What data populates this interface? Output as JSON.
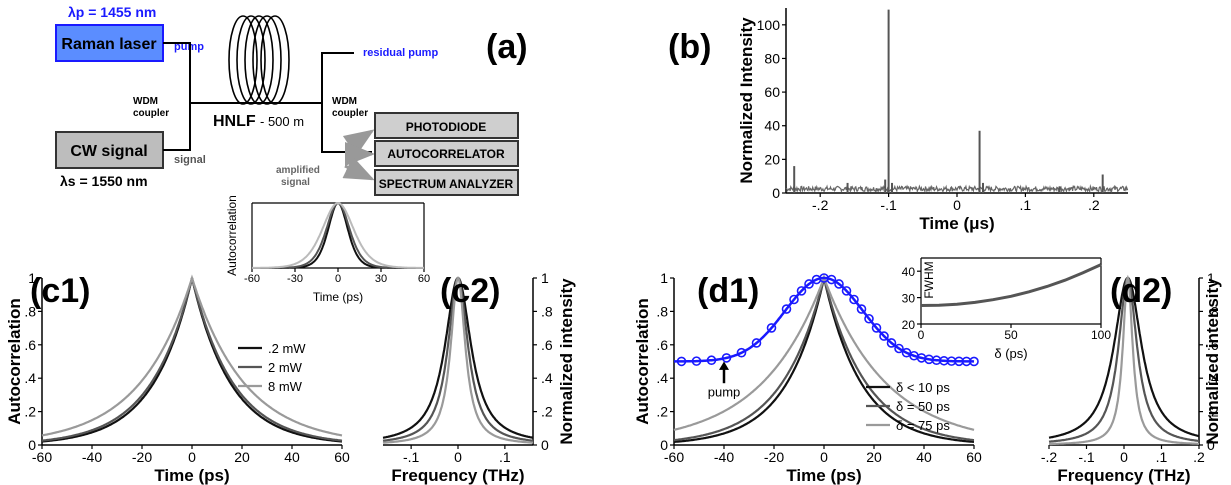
{
  "colors": {
    "blue": "#1a1aff",
    "laser_fill": "#5b8dff",
    "box_fill": "#bdbdbd",
    "dark": "#111111",
    "mid": "#555555",
    "light": "#9a9a9a"
  },
  "panel_a": {
    "label": "(a)",
    "lambda_p": "λp = 1455 nm",
    "lambda_s": "λs = 1550 nm",
    "raman": "Raman laser",
    "pump": "pump",
    "cw": "CW signal",
    "signal": "signal",
    "wdm1": [
      "WDM",
      "coupler"
    ],
    "wdm2": [
      "WDM",
      "coupler"
    ],
    "hnlf": "HNLF",
    "hnlf_len": "- 500 m",
    "residual": "residual pump",
    "amplified": [
      "amplified",
      "signal"
    ],
    "photodiode": "PHOTODIODE",
    "autocorrelator": "AUTOCORRELATOR",
    "spectrum": "SPECTRUM ANALYZER"
  },
  "chart_data": [
    {
      "id": "b",
      "type": "line",
      "label": "(b)",
      "xlabel": "Time (μs)",
      "ylabel": "Normalized Intensity",
      "xlim": [
        -0.25,
        0.25
      ],
      "ylim": [
        0,
        110
      ],
      "xticks": [
        "-.2",
        "-.1",
        "0",
        ".1",
        ".2"
      ],
      "yticks": [
        "0",
        "20",
        "40",
        "60",
        "80",
        "100"
      ],
      "baseline": 2.5,
      "spikes": [
        [
          -0.238,
          16
        ],
        [
          -0.16,
          6
        ],
        [
          -0.1,
          109
        ],
        [
          -0.105,
          8
        ],
        [
          -0.095,
          6
        ],
        [
          0.033,
          37
        ],
        [
          0.038,
          6
        ],
        [
          0.15,
          4
        ],
        [
          0.213,
          11
        ]
      ]
    },
    {
      "id": "c1",
      "type": "line",
      "label": "(c1)",
      "xlabel": "Time (ps)",
      "ylabel": "Autocorrelation",
      "xlim": [
        -60,
        60
      ],
      "ylim": [
        0,
        1
      ],
      "xticks": [
        "-60",
        "-40",
        "-20",
        "0",
        "20",
        "40",
        "60"
      ],
      "yticks": [
        "0",
        ".2",
        ".4",
        ".6",
        ".8",
        "1"
      ],
      "series": [
        {
          "name": ".2 mW",
          "color": "#111111",
          "width_ps": 15.5
        },
        {
          "name": "2 mW",
          "color": "#555555",
          "width_ps": 16.5
        },
        {
          "name": "8 mW",
          "color": "#9a9a9a",
          "width_ps": 21.0
        }
      ]
    },
    {
      "id": "c_inset",
      "type": "line",
      "xlabel": "Time (ps)",
      "ylabel": "Autocorrelation",
      "xlim": [
        -60,
        60
      ],
      "ylim": [
        0,
        1
      ],
      "xticks": [
        "-60",
        "-30",
        "0",
        "30",
        "60"
      ],
      "series": [
        {
          "color": "#111111",
          "width_ps": 11.0
        },
        {
          "color": "#555555",
          "width_ps": 13.0
        },
        {
          "color": "#bbbbbb",
          "width_ps": 17.5
        }
      ]
    },
    {
      "id": "c2",
      "type": "line",
      "label": "(c2)",
      "xlabel": "Frequency (THz)",
      "ylabel": "Normalized intensity",
      "xlim": [
        -0.16,
        0.16
      ],
      "ylim": [
        0,
        1
      ],
      "xticks": [
        "-.1",
        "0",
        ".1"
      ],
      "yticks": [
        "0",
        ".2",
        ".4",
        ".6",
        ".8",
        "1"
      ],
      "series": [
        {
          "color": "#111111",
          "width": 0.034
        },
        {
          "color": "#555555",
          "width": 0.026
        },
        {
          "color": "#9a9a9a",
          "width": 0.019
        }
      ]
    },
    {
      "id": "d1",
      "type": "line",
      "label": "(d1)",
      "xlabel": "Time (ps)",
      "ylabel": "Autocorrelation",
      "xlim": [
        -60,
        60
      ],
      "ylim": [
        0,
        1
      ],
      "xticks": [
        "-60",
        "-40",
        "-20",
        "0",
        "20",
        "40",
        "60"
      ],
      "yticks": [
        "0",
        ".2",
        ".4",
        ".6",
        ".8",
        "1"
      ],
      "annotation": "pump",
      "series": [
        {
          "name": "δ < 10 ps",
          "color": "#111111",
          "width_ps": 15.0
        },
        {
          "name": "δ = 50 ps",
          "color": "#555555",
          "width_ps": 17.0
        },
        {
          "name": "δ = 75 ps",
          "color": "#9a9a9a",
          "width_ps": 25.0
        }
      ],
      "pump_trace": {
        "color": "#1a1aff",
        "base": 0.5,
        "width_ps": 22,
        "markers_step_ps": 3
      }
    },
    {
      "id": "d_inset",
      "type": "line",
      "xlabel": "δ (ps)",
      "ylabel": "FWHM",
      "xlim": [
        0,
        100
      ],
      "ylim": [
        20,
        45
      ],
      "xticks": [
        "0",
        "50",
        "100"
      ],
      "yticks": [
        "20",
        "30",
        "40"
      ],
      "x": [
        0,
        10,
        20,
        30,
        40,
        50,
        60,
        70,
        80,
        90,
        100
      ],
      "y": [
        27,
        27.1,
        27.5,
        28.2,
        29.2,
        30.5,
        32.2,
        34.2,
        36.6,
        39.4,
        42.5
      ]
    },
    {
      "id": "d2",
      "type": "line",
      "label": "(d2)",
      "xlabel": "Frequency (THz)",
      "ylabel": "Normalized intensity",
      "xlim": [
        -0.2,
        0.2
      ],
      "ylim": [
        0,
        1
      ],
      "xticks": [
        "-.2",
        "-.1",
        "0",
        ".1",
        ".2"
      ],
      "yticks": [
        "0",
        ".2",
        ".4",
        ".6",
        ".8",
        "1"
      ],
      "series": [
        {
          "color": "#111111",
          "width": 0.045
        },
        {
          "color": "#555555",
          "width": 0.03
        },
        {
          "color": "#9a9a9a",
          "width": 0.016
        }
      ]
    }
  ]
}
